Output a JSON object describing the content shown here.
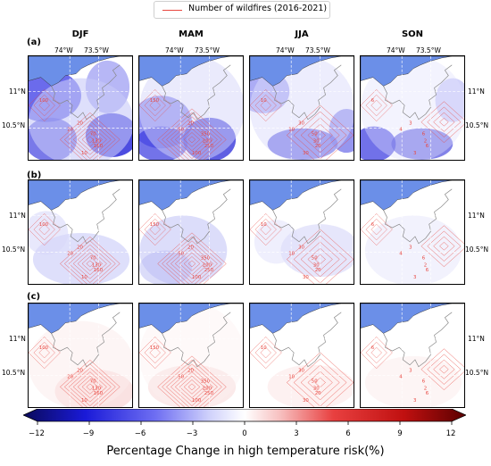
{
  "legend": {
    "label": "Number of wildfires (2016-2021)",
    "line_color": "#e8463f"
  },
  "seasons": [
    "DJF",
    "MAM",
    "JJA",
    "SON"
  ],
  "rows": [
    "(a)",
    "(b)",
    "(c)"
  ],
  "lon_ticks": [
    "74°W",
    "73.5°W"
  ],
  "lat_ticks": [
    "11°N",
    "10.5°N"
  ],
  "contour_labels": {
    "DJF": [
      "100",
      "20",
      "70",
      "130",
      "160",
      "20",
      "10"
    ],
    "MAM": [
      "150",
      "20",
      "350",
      "200",
      "250",
      "50",
      "100"
    ],
    "JJA": [
      "10",
      "30",
      "50",
      "30",
      "20",
      "10",
      "30"
    ],
    "SON": [
      "6",
      "3",
      "6",
      "2",
      "6",
      "4",
      "3"
    ]
  },
  "colorbar": {
    "label": "Percentage Change in high temperature risk(%)",
    "ticks": [
      "−12",
      "−9",
      "−6",
      "−3",
      "0",
      "3",
      "6",
      "9",
      "12"
    ],
    "min": -12,
    "max": 12,
    "stops": [
      "#0a0a5a",
      "#1a1ad8",
      "#6f6ff2",
      "#cfd1fb",
      "#ffffff",
      "#f7c0c0",
      "#e84040",
      "#c01010",
      "#5a0000"
    ]
  },
  "colors": {
    "sea": "#6b8fe8",
    "contour": "#e8463f",
    "coast": "#888888"
  }
}
